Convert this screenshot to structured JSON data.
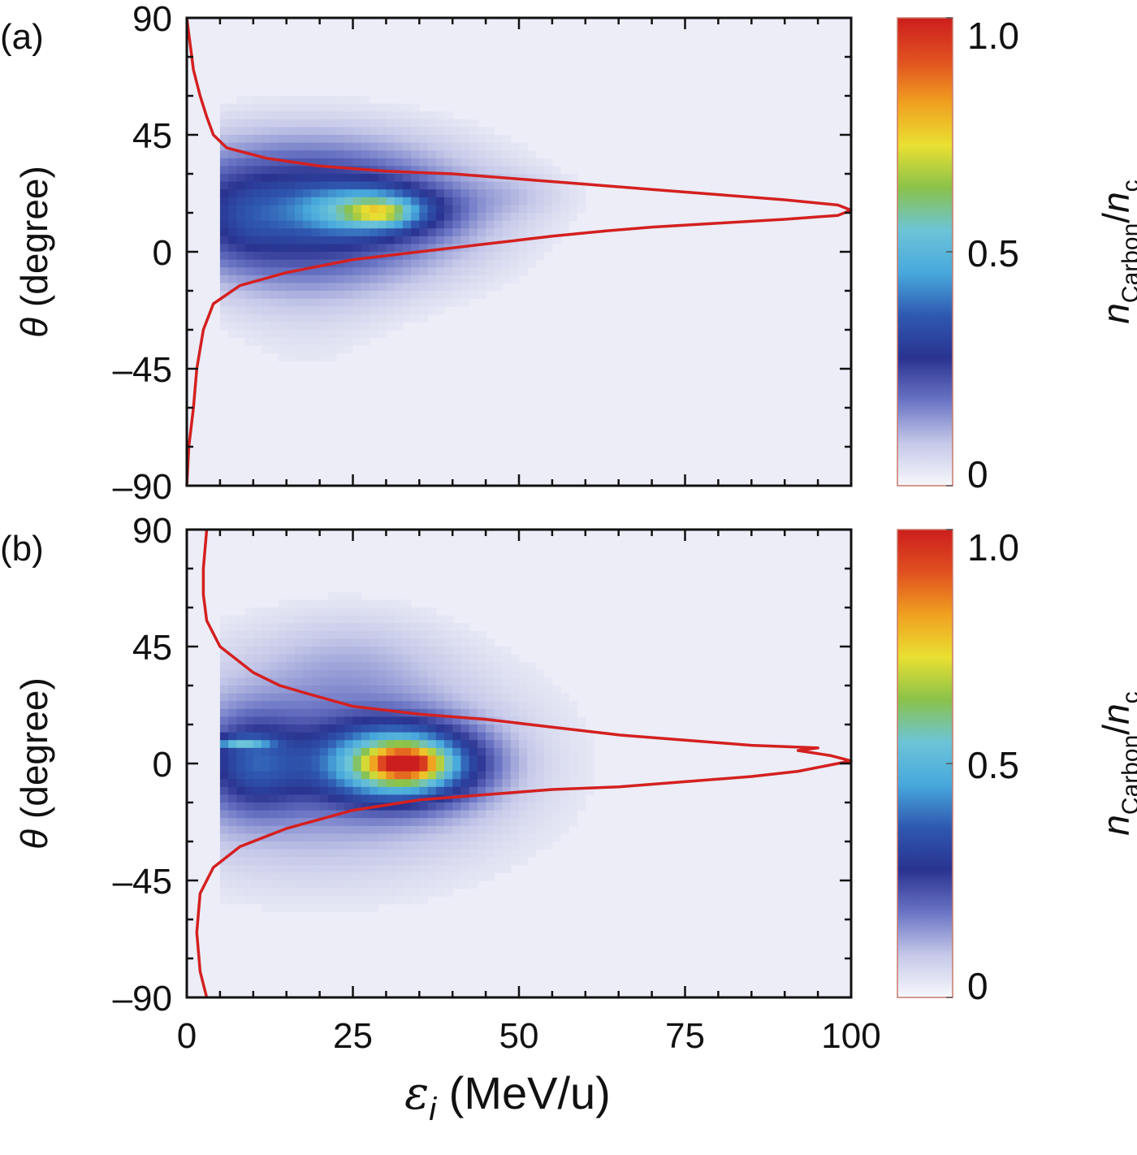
{
  "chart_data": [
    {
      "type": "heatmap",
      "panel_label": "(a)",
      "xlabel": "",
      "xlabel_symbol": "ε",
      "xlabel_sub": "i",
      "xlabel_unit": " (MeV/u)",
      "ylabel_symbol": "θ",
      "ylabel_unit": " (degree)",
      "xlim": [
        0,
        100
      ],
      "ylim": [
        -90,
        90
      ],
      "x_ticks": [
        0,
        25,
        50,
        75,
        100
      ],
      "x_tick_labels": [
        "0",
        "25",
        "50",
        "75",
        "100"
      ],
      "y_ticks": [
        90,
        45,
        0,
        -45,
        -90
      ],
      "y_tick_labels": [
        "90",
        "45",
        "0",
        "–45",
        "–90"
      ],
      "colorbar": {
        "label_n": "n",
        "label_sub1": "Carbon",
        "label_slash": "/",
        "label_n2": "n",
        "label_sub2": "c",
        "range": [
          0,
          1.0
        ],
        "tick_values": [
          1.0,
          0.5,
          0
        ],
        "tick_labels": [
          "1.0",
          "0.5",
          "0"
        ],
        "colors": [
          "#f7f7fb",
          "#c5c8e8",
          "#6a74c4",
          "#2a3390",
          "#2f58b0",
          "#48a8dc",
          "#6cc4d8",
          "#8ac24a",
          "#e9e032",
          "#f0a020",
          "#e05020",
          "#cc1e1e"
        ]
      },
      "blobs": [
        {
          "x": 18,
          "y": 16,
          "sx": 18,
          "sy": 20,
          "v": 0.33
        },
        {
          "x": 28,
          "y": 16,
          "sx": 7,
          "sy": 6,
          "v": 0.3
        },
        {
          "x": 29,
          "y": 15,
          "sx": 3,
          "sy": 3,
          "v": 0.2
        },
        {
          "x": 9,
          "y": 12,
          "sx": 4,
          "sy": 10,
          "v": 0.05
        },
        {
          "x": 50,
          "y": 22,
          "sx": 6,
          "sy": 6,
          "v": 0.04
        },
        {
          "x": 18,
          "y": -25,
          "sx": 10,
          "sy": 30,
          "v": 0.03
        }
      ],
      "spectrum_curve": {
        "color": "#d42020",
        "points": [
          [
            0,
            -90
          ],
          [
            0.3,
            -75
          ],
          [
            1,
            -60
          ],
          [
            1.5,
            -45
          ],
          [
            2.5,
            -30
          ],
          [
            4,
            -20
          ],
          [
            8,
            -13
          ],
          [
            15,
            -8
          ],
          [
            25,
            -3
          ],
          [
            35,
            0
          ],
          [
            45,
            3
          ],
          [
            55,
            6
          ],
          [
            63,
            8
          ],
          [
            70,
            9.5
          ],
          [
            80,
            11
          ],
          [
            90,
            12.5
          ],
          [
            98,
            14
          ],
          [
            100,
            16
          ],
          [
            98,
            18
          ],
          [
            90,
            20
          ],
          [
            80,
            22
          ],
          [
            70,
            24
          ],
          [
            60,
            26
          ],
          [
            50,
            28
          ],
          [
            40,
            30
          ],
          [
            30,
            31
          ],
          [
            20,
            33
          ],
          [
            12,
            36
          ],
          [
            6,
            40
          ],
          [
            4,
            45
          ],
          [
            3,
            52
          ],
          [
            2,
            60
          ],
          [
            1,
            70
          ],
          [
            0.5,
            80
          ],
          [
            0,
            90
          ]
        ]
      }
    },
    {
      "type": "heatmap",
      "panel_label": "(b)",
      "xlim": [
        0,
        100
      ],
      "ylim": [
        -90,
        90
      ],
      "x_ticks": [
        0,
        25,
        50,
        75,
        100
      ],
      "x_tick_labels": [
        "0",
        "25",
        "50",
        "75",
        "100"
      ],
      "y_ticks": [
        90,
        45,
        0,
        -45,
        -90
      ],
      "y_tick_labels": [
        "90",
        "45",
        "0",
        "–45",
        "–90"
      ],
      "ylabel_symbol": "θ",
      "ylabel_unit": " (degree)",
      "colorbar": {
        "label_n": "n",
        "label_sub1": "Carbon",
        "label_slash": "/",
        "label_n2": "n",
        "label_sub2": "c",
        "range": [
          0,
          1.0
        ],
        "tick_values": [
          1.0,
          0.5,
          0
        ],
        "tick_labels": [
          "1.0",
          "0.5",
          "0"
        ],
        "colors": [
          "#f7f7fb",
          "#c5c8e8",
          "#6a74c4",
          "#2a3390",
          "#2f58b0",
          "#48a8dc",
          "#6cc4d8",
          "#8ac24a",
          "#e9e032",
          "#f0a020",
          "#e05020",
          "#cc1e1e"
        ]
      },
      "blobs": [
        {
          "x": 20,
          "y": 0,
          "sx": 22,
          "sy": 30,
          "v": 0.18
        },
        {
          "x": 32,
          "y": 0,
          "sx": 8,
          "sy": 10,
          "v": 0.55
        },
        {
          "x": 33,
          "y": 0,
          "sx": 3.5,
          "sy": 4,
          "v": 0.45
        },
        {
          "x": 10,
          "y": 0,
          "sx": 5,
          "sy": 12,
          "v": 0.2
        },
        {
          "x": 8,
          "y": 8,
          "sx": 3,
          "sy": 1.5,
          "v": 0.25
        },
        {
          "x": 25,
          "y": 40,
          "sx": 10,
          "sy": 15,
          "v": 0.05
        }
      ],
      "spectrum_curve": {
        "color": "#d42020",
        "points": [
          [
            3,
            -90
          ],
          [
            2,
            -80
          ],
          [
            1.5,
            -65
          ],
          [
            2,
            -50
          ],
          [
            4,
            -40
          ],
          [
            8,
            -32
          ],
          [
            15,
            -25
          ],
          [
            25,
            -18
          ],
          [
            35,
            -14
          ],
          [
            45,
            -12
          ],
          [
            55,
            -10
          ],
          [
            65,
            -9
          ],
          [
            75,
            -7
          ],
          [
            85,
            -5
          ],
          [
            92,
            -3
          ],
          [
            98,
            0
          ],
          [
            100,
            1
          ],
          [
            97,
            3
          ],
          [
            92,
            5
          ],
          [
            95,
            6
          ],
          [
            85,
            7
          ],
          [
            75,
            9
          ],
          [
            65,
            11
          ],
          [
            55,
            14
          ],
          [
            45,
            17
          ],
          [
            35,
            19
          ],
          [
            25,
            22
          ],
          [
            18,
            27
          ],
          [
            14,
            30
          ],
          [
            10,
            35
          ],
          [
            5,
            45
          ],
          [
            3,
            55
          ],
          [
            2.5,
            65
          ],
          [
            2.5,
            75
          ],
          [
            3,
            90
          ]
        ]
      }
    }
  ]
}
